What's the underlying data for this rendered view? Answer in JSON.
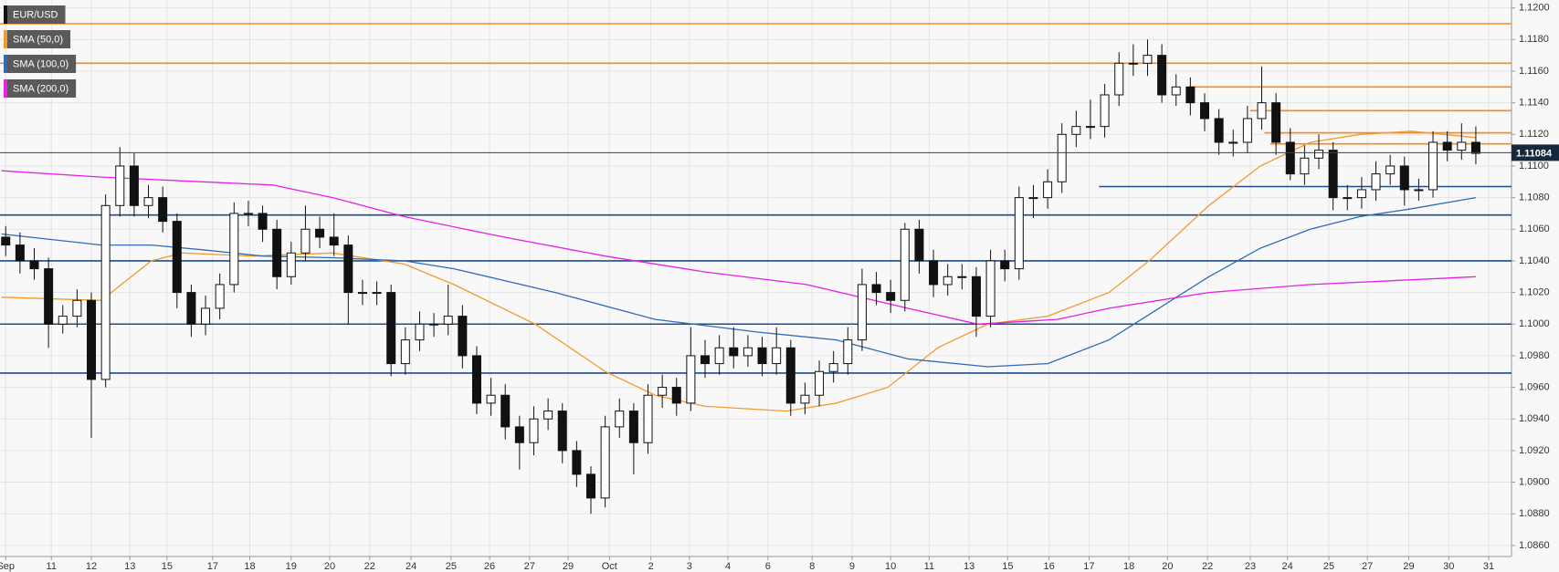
{
  "chart_data": {
    "type": "candlestick",
    "symbol": "EUR/USD",
    "symbol_color": "#111111",
    "open": [
      1.1055,
      1.105,
      1.104,
      1.1035,
      1.1,
      1.1005,
      1.1015,
      1.0965,
      1.1075,
      1.11,
      1.1075,
      1.108,
      1.1065,
      1.102,
      1.1,
      1.101,
      1.1025,
      1.107,
      1.107,
      1.106,
      1.103,
      1.1045,
      1.106,
      1.1055,
      1.105,
      1.102,
      1.102,
      1.102,
      1.0975,
      1.099,
      1.1,
      1.1,
      1.1005,
      1.098,
      1.095,
      1.0955,
      1.0935,
      1.0925,
      1.094,
      1.0945,
      1.092,
      1.0905,
      1.089,
      1.0935,
      1.0945,
      1.0925,
      1.0955,
      1.096,
      1.095,
      1.098,
      1.0975,
      1.0985,
      1.098,
      1.0985,
      1.0975,
      1.0985,
      1.095,
      1.0955,
      1.097,
      1.0975,
      1.099,
      1.1025,
      1.102,
      1.1015,
      1.106,
      1.104,
      1.1025,
      1.103,
      1.103,
      1.1005,
      1.104,
      1.1035,
      1.108,
      1.108,
      1.109,
      1.112,
      1.1125,
      1.1125,
      1.1145,
      1.1165,
      1.1165,
      1.117,
      1.1145,
      1.115,
      1.114,
      1.113,
      1.1115,
      1.1115,
      1.113,
      1.114,
      1.1115,
      1.1095,
      1.1105,
      1.111,
      1.108,
      1.108,
      1.1085,
      1.1095,
      1.11,
      1.1085,
      1.1085,
      1.1115,
      1.111,
      1.1115
    ],
    "high": [
      1.1062,
      1.1058,
      1.1048,
      1.1042,
      1.1012,
      1.1022,
      1.102,
      1.1082,
      1.1112,
      1.1108,
      1.1088,
      1.1087,
      1.107,
      1.1025,
      1.1018,
      1.1032,
      1.1077,
      1.1078,
      1.1075,
      1.1066,
      1.1052,
      1.1075,
      1.1068,
      1.107,
      1.1056,
      1.1028,
      1.1027,
      1.1025,
      1.0998,
      1.1008,
      1.1007,
      1.1025,
      1.1012,
      1.0986,
      1.0966,
      1.0962,
      1.0942,
      1.0948,
      1.0953,
      1.095,
      1.0926,
      1.091,
      1.0942,
      1.0953,
      1.095,
      1.0962,
      1.0968,
      1.0966,
      1.0998,
      1.099,
      1.0993,
      1.0998,
      1.0993,
      1.0992,
      1.0998,
      1.099,
      1.0963,
      1.0977,
      1.0983,
      1.0998,
      1.1035,
      1.1033,
      1.1028,
      1.1064,
      1.1066,
      1.1047,
      1.1038,
      1.1038,
      1.1036,
      1.1047,
      1.1047,
      1.1087,
      1.1088,
      1.1098,
      1.1127,
      1.1135,
      1.1142,
      1.1152,
      1.1172,
      1.1177,
      1.118,
      1.1177,
      1.1158,
      1.1156,
      1.1146,
      1.1136,
      1.1123,
      1.1138,
      1.1163,
      1.1146,
      1.1124,
      1.1113,
      1.112,
      1.1115,
      1.1088,
      1.1093,
      1.1103,
      1.1107,
      1.1106,
      1.1092,
      1.1122,
      1.1122,
      1.1127,
      1.1125
    ],
    "low": [
      1.1043,
      1.1032,
      1.1028,
      1.0985,
      1.0994,
      1.0998,
      1.0928,
      1.096,
      1.1068,
      1.1068,
      1.1067,
      1.1058,
      1.101,
      1.0992,
      1.0993,
      1.1003,
      1.102,
      1.1062,
      1.1052,
      1.1022,
      1.1025,
      1.104,
      1.1048,
      1.1043,
      1.1,
      1.1012,
      1.1012,
      1.0967,
      1.0968,
      1.0983,
      1.0992,
      1.0993,
      1.0972,
      1.0943,
      1.0942,
      1.0927,
      1.0908,
      1.0917,
      1.0933,
      1.0912,
      1.0897,
      1.088,
      1.0884,
      1.0928,
      1.0905,
      1.0918,
      1.0947,
      1.0942,
      1.0945,
      1.0966,
      1.0968,
      1.0972,
      1.0973,
      1.0967,
      1.0968,
      1.0942,
      1.0943,
      1.0948,
      1.0963,
      1.0968,
      1.0983,
      1.1012,
      1.1007,
      1.1008,
      1.1032,
      1.1017,
      1.1018,
      1.1022,
      1.0992,
      1.0998,
      1.1027,
      1.1028,
      1.1067,
      1.1073,
      1.1083,
      1.1112,
      1.1117,
      1.1118,
      1.1138,
      1.1157,
      1.1157,
      1.114,
      1.1138,
      1.1132,
      1.1122,
      1.1107,
      1.1106,
      1.1108,
      1.1123,
      1.1107,
      1.1091,
      1.1088,
      1.1098,
      1.1072,
      1.1072,
      1.1073,
      1.1078,
      1.1088,
      1.1075,
      1.1078,
      1.108,
      1.1103,
      1.1104,
      1.1101
    ],
    "close": [
      1.105,
      1.104,
      1.1035,
      1.1,
      1.1005,
      1.1015,
      1.0965,
      1.1075,
      1.11,
      1.1075,
      1.108,
      1.1065,
      1.102,
      1.1,
      1.101,
      1.1025,
      1.107,
      1.107,
      1.106,
      1.103,
      1.1045,
      1.106,
      1.1055,
      1.105,
      1.102,
      1.102,
      1.102,
      1.0975,
      1.099,
      1.1,
      1.1,
      1.1005,
      1.098,
      1.095,
      1.0955,
      1.0935,
      1.0925,
      1.094,
      1.0945,
      1.092,
      1.0905,
      1.089,
      1.0935,
      1.0945,
      1.0925,
      1.0955,
      1.096,
      1.095,
      1.098,
      1.0975,
      1.0985,
      1.098,
      1.0985,
      1.0975,
      1.0985,
      1.095,
      1.0955,
      1.097,
      1.0975,
      1.099,
      1.1025,
      1.102,
      1.1015,
      1.106,
      1.104,
      1.1025,
      1.103,
      1.103,
      1.1005,
      1.104,
      1.1035,
      1.108,
      1.108,
      1.109,
      1.112,
      1.1125,
      1.1125,
      1.1145,
      1.1165,
      1.1165,
      1.117,
      1.1145,
      1.115,
      1.114,
      1.113,
      1.1115,
      1.1115,
      1.113,
      1.114,
      1.1115,
      1.1095,
      1.1105,
      1.111,
      1.108,
      1.108,
      1.1085,
      1.1095,
      1.11,
      1.1085,
      1.1085,
      1.1115,
      1.111,
      1.1115,
      1.1108
    ],
    "up_color": "#ffffff",
    "down_color": "#111111",
    "series": [
      {
        "name": "SMA (50,0)",
        "color": "#f39a2e",
        "x": [
          -0.3,
          6.7,
          10.2,
          12.4,
          17.3,
          22.9,
          27.9,
          31.4,
          37.1,
          42.0,
          45.5,
          49.0,
          54.7,
          58.2,
          61.8,
          65.3,
          68.8,
          73.0,
          77.3,
          80.1,
          84.3,
          87.9,
          91.4,
          94.9,
          98.5,
          103.0
        ],
        "values": [
          1.1017,
          1.1015,
          1.104,
          1.1045,
          1.1043,
          1.1045,
          1.1038,
          1.1025,
          1.1,
          1.097,
          1.0955,
          1.0948,
          1.0945,
          1.095,
          1.096,
          1.0985,
          1.1,
          1.1005,
          1.102,
          1.104,
          1.1075,
          1.11,
          1.1115,
          1.112,
          1.1122,
          1.1118
        ]
      },
      {
        "name": "SMA (100,0)",
        "color": "#2f6cb5",
        "x": [
          -0.3,
          6.7,
          10.2,
          13.8,
          18.0,
          22.9,
          27.9,
          31.4,
          38.5,
          45.5,
          52.6,
          58.2,
          63.2,
          68.8,
          73.0,
          77.3,
          80.8,
          84.3,
          87.9,
          91.4,
          94.9,
          98.5,
          103.0
        ],
        "values": [
          1.1057,
          1.105,
          1.105,
          1.1047,
          1.1043,
          1.1042,
          1.104,
          1.1035,
          1.102,
          1.1003,
          1.0995,
          1.099,
          1.0978,
          1.0973,
          1.0975,
          1.099,
          1.101,
          1.103,
          1.1048,
          1.106,
          1.1068,
          1.1073,
          1.108
        ]
      },
      {
        "name": "SMA (200,0)",
        "color": "#e620e6",
        "x": [
          -0.3,
          6.7,
          13.8,
          18.7,
          22.9,
          27.9,
          34.9,
          42.0,
          49.0,
          56.1,
          63.2,
          68.1,
          73.7,
          77.3,
          84.3,
          91.4,
          98.5,
          103.0
        ],
        "values": [
          1.1097,
          1.1093,
          1.109,
          1.1088,
          1.108,
          1.1068,
          1.1055,
          1.1043,
          1.1033,
          1.1025,
          1.101,
          1.1,
          1.1003,
          1.101,
          1.102,
          1.1025,
          1.1028,
          1.103
        ]
      }
    ],
    "levels": [
      {
        "value": 1.119,
        "color": "#f28c1e"
      },
      {
        "value": 1.1165,
        "color": "#f28c1e"
      },
      {
        "value": 1.115,
        "color": "#f28c1e",
        "x0": 82.9
      },
      {
        "value": 1.1135,
        "color": "#f28c1e",
        "x0": 87.2
      },
      {
        "value": 1.1121,
        "color": "#f28c1e",
        "x0": 88.2
      },
      {
        "value": 1.1114,
        "color": "#f28c1e",
        "x0": 88.6
      },
      {
        "value": 1.1087,
        "color": "#1c4d8c",
        "x0": 76.6
      },
      {
        "value": 1.1069,
        "color": "#1c4d8c"
      },
      {
        "value": 1.104,
        "color": "#1c4d8c"
      },
      {
        "value": 1.1,
        "color": "#1c4d8c"
      },
      {
        "value": 1.0969,
        "color": "#1c4d8c"
      }
    ],
    "last_price": 1.11084,
    "xlim": [
      -0.4,
      105.5
    ],
    "xticks": [
      {
        "value": 0,
        "label": "Sep"
      },
      {
        "value": 3.2,
        "label": "11"
      },
      {
        "value": 6.0,
        "label": "12"
      },
      {
        "value": 8.7,
        "label": "13"
      },
      {
        "value": 11.3,
        "label": "15"
      },
      {
        "value": 14.5,
        "label": "17"
      },
      {
        "value": 17.1,
        "label": "18"
      },
      {
        "value": 20.0,
        "label": "19"
      },
      {
        "value": 22.7,
        "label": "20"
      },
      {
        "value": 25.5,
        "label": "22"
      },
      {
        "value": 28.4,
        "label": "24"
      },
      {
        "value": 31.2,
        "label": "25"
      },
      {
        "value": 33.9,
        "label": "26"
      },
      {
        "value": 36.7,
        "label": "27"
      },
      {
        "value": 39.4,
        "label": "29"
      },
      {
        "value": 42.3,
        "label": "Oct"
      },
      {
        "value": 45.2,
        "label": "2"
      },
      {
        "value": 47.9,
        "label": "3"
      },
      {
        "value": 50.6,
        "label": "4"
      },
      {
        "value": 53.4,
        "label": "6"
      },
      {
        "value": 56.5,
        "label": "8"
      },
      {
        "value": 59.3,
        "label": "9"
      },
      {
        "value": 62.0,
        "label": "10"
      },
      {
        "value": 64.7,
        "label": "11"
      },
      {
        "value": 67.5,
        "label": "13"
      },
      {
        "value": 70.2,
        "label": "15"
      },
      {
        "value": 73.1,
        "label": "16"
      },
      {
        "value": 75.9,
        "label": "17"
      },
      {
        "value": 78.7,
        "label": "18"
      },
      {
        "value": 81.4,
        "label": "20"
      },
      {
        "value": 84.2,
        "label": "22"
      },
      {
        "value": 87.2,
        "label": "23"
      },
      {
        "value": 89.8,
        "label": "24"
      },
      {
        "value": 92.7,
        "label": "25"
      },
      {
        "value": 95.4,
        "label": "27"
      },
      {
        "value": 98.3,
        "label": "29"
      },
      {
        "value": 101.1,
        "label": "30"
      },
      {
        "value": 103.9,
        "label": "31"
      }
    ],
    "ylim": [
      1.0853,
      1.1205
    ],
    "yticks": [
      {
        "value": 1.086,
        "label": "1.0860"
      },
      {
        "value": 1.088,
        "label": "1.0880"
      },
      {
        "value": 1.09,
        "label": "1.0900"
      },
      {
        "value": 1.092,
        "label": "1.0920"
      },
      {
        "value": 1.094,
        "label": "1.0940"
      },
      {
        "value": 1.096,
        "label": "1.0960"
      },
      {
        "value": 1.098,
        "label": "1.0980"
      },
      {
        "value": 1.1,
        "label": "1.1000"
      },
      {
        "value": 1.102,
        "label": "1.1020"
      },
      {
        "value": 1.104,
        "label": "1.1040"
      },
      {
        "value": 1.106,
        "label": "1.1060"
      },
      {
        "value": 1.108,
        "label": "1.1080"
      },
      {
        "value": 1.11,
        "label": "1.1100"
      },
      {
        "value": 1.112,
        "label": "1.1120"
      },
      {
        "value": 1.114,
        "label": "1.1140"
      },
      {
        "value": 1.116,
        "label": "1.1160"
      },
      {
        "value": 1.118,
        "label": "1.1180"
      },
      {
        "value": 1.12,
        "label": "1.1200"
      }
    ],
    "grid": true
  }
}
